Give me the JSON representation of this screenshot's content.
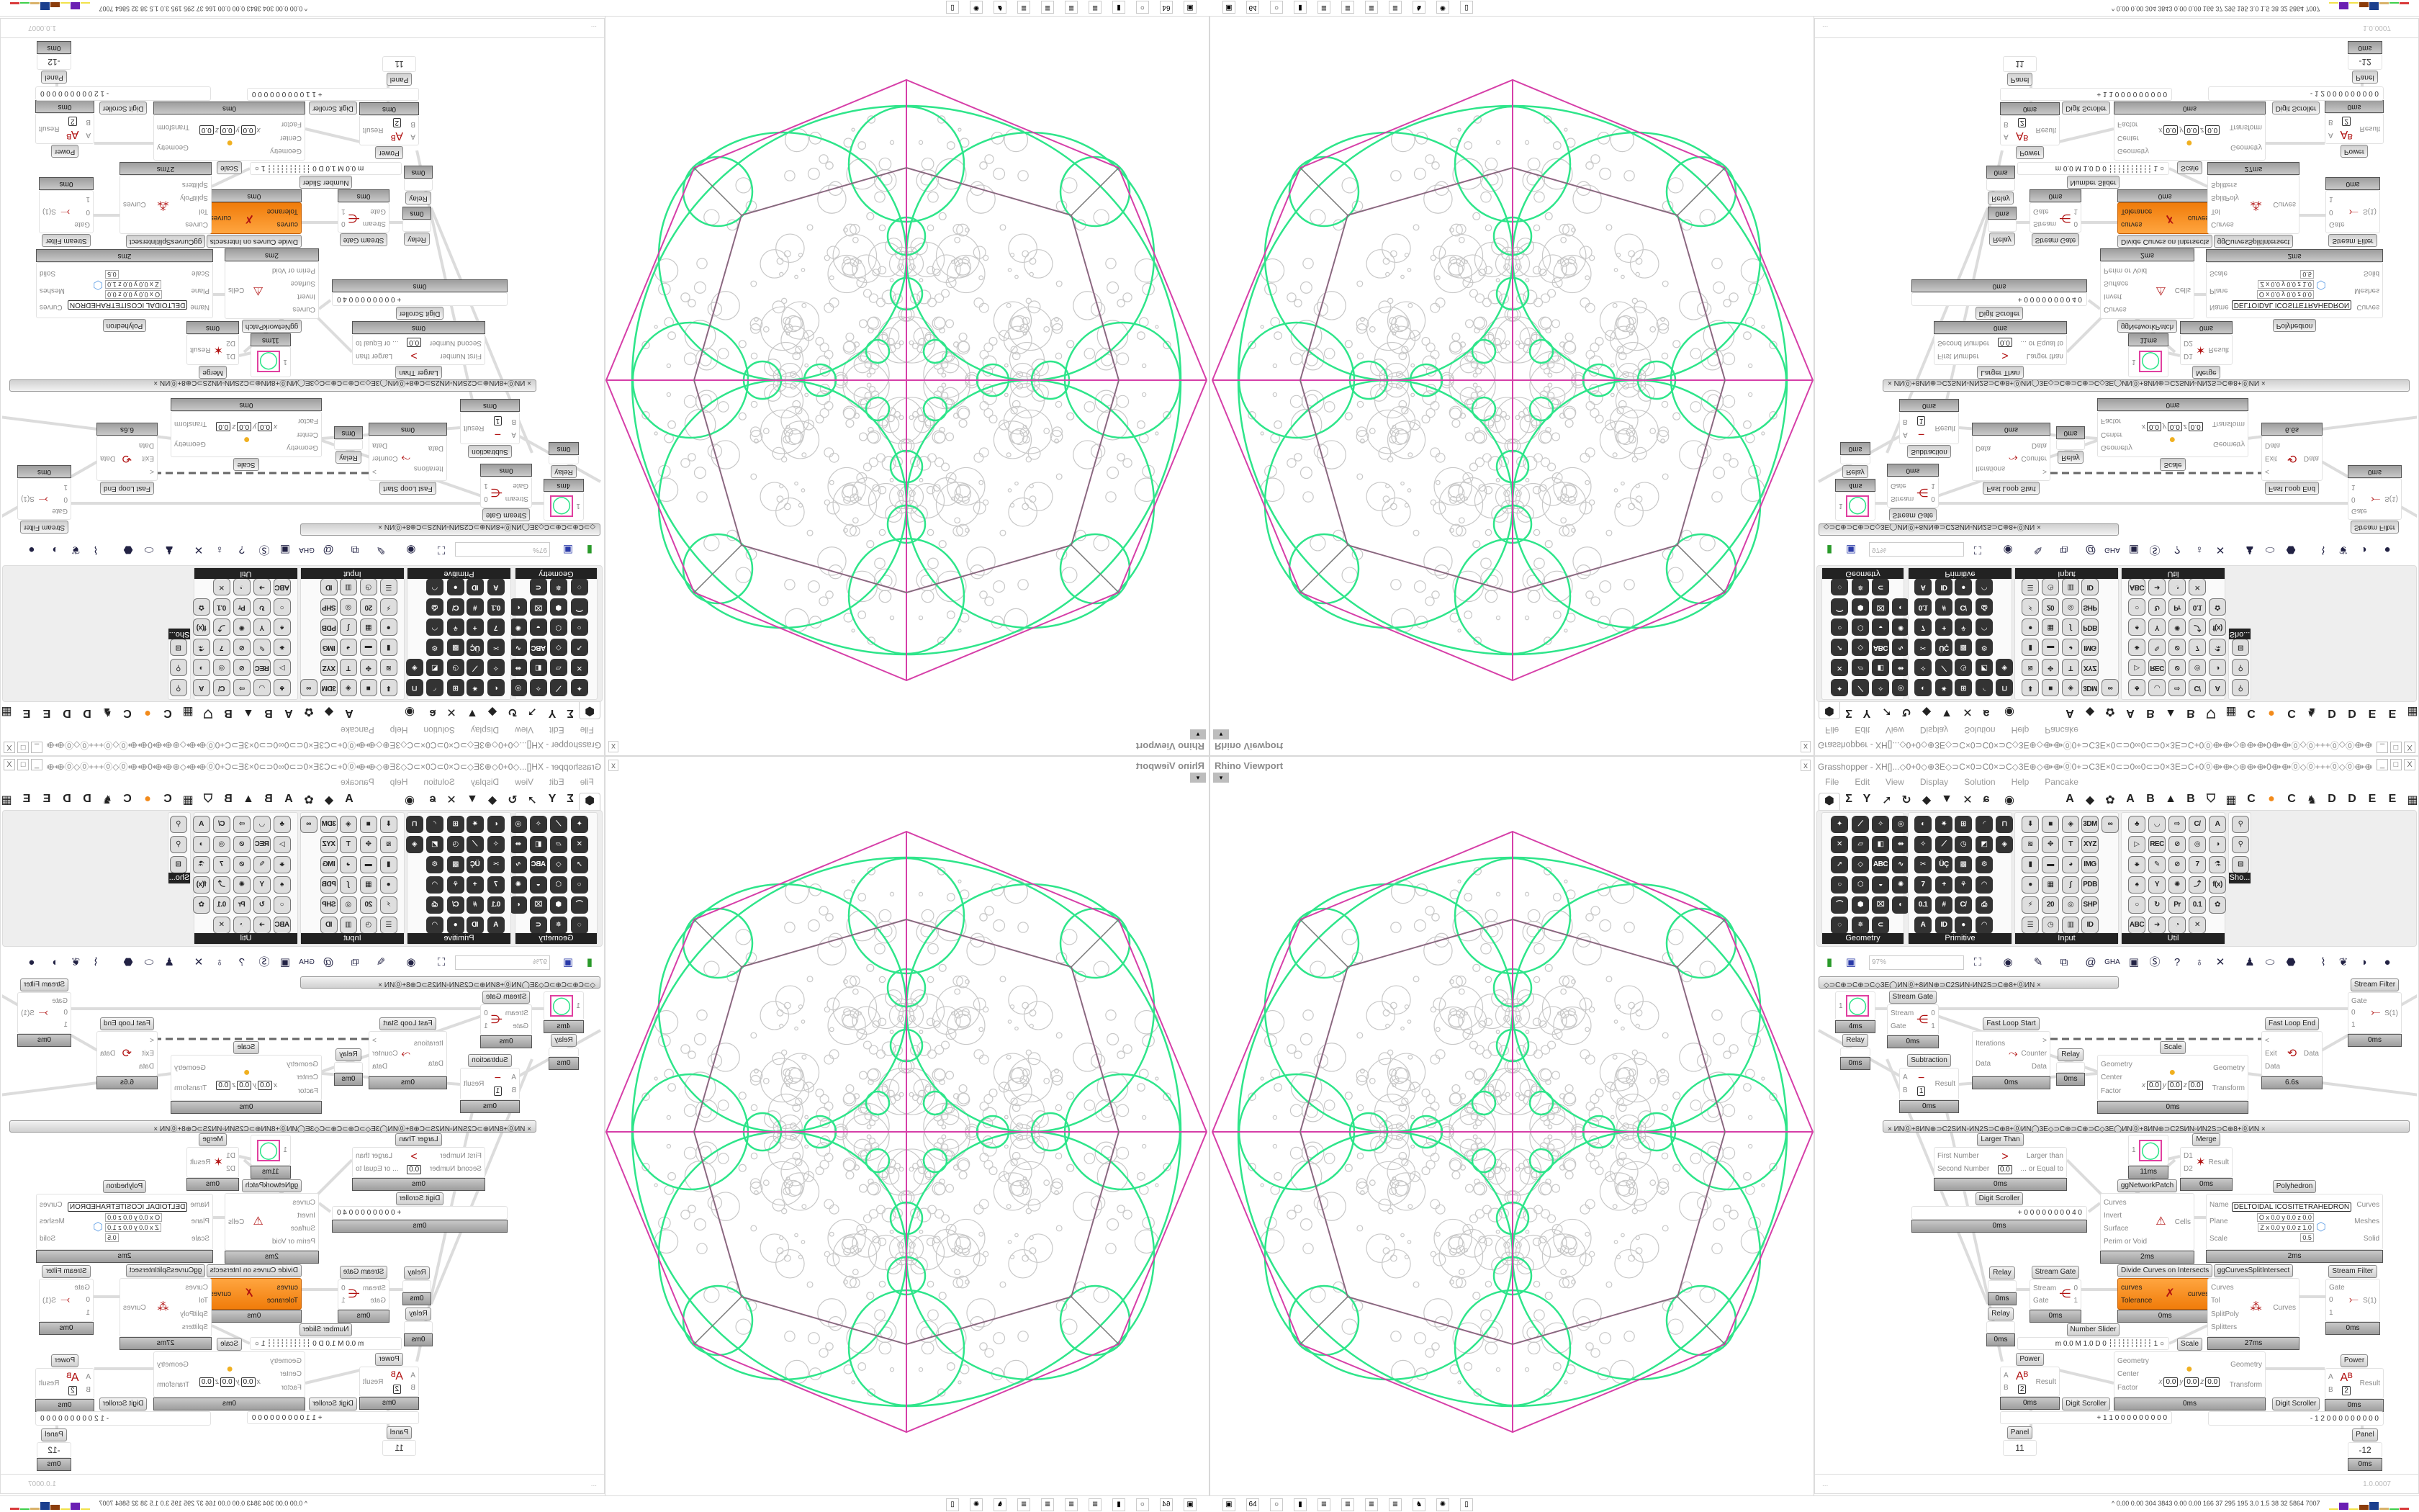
{
  "viewport": {
    "title": "Rhino Viewport",
    "close": "x",
    "dropdown": "▾",
    "colors": {
      "polyhedron": "#d63fa8",
      "curves": "#2ee58a",
      "pattern": "#c8c8c8",
      "edges": "#777777"
    }
  },
  "grasshopper": {
    "title": "Grasshopper - XH[]...◇0+0◇⊕3E◇⊃C×0⊃C0×⊃C◇3E⊕◇⟴⟴⓪0+⊃C3E×0⊂⊃0∞0⊂⊃0×3E⊃C+0⓪⟴⟴◇⊕⟴⟴0⟴⟴⓪◇⓪+++⓪◇⓪⟴⟴0⟴⟴⊕◇⟴⟴⓪0+⊃C3E×0⊂⊃0∞0⊂⊃...",
    "window_buttons": [
      "_",
      "□",
      "X"
    ],
    "menu": [
      "File",
      "Edit",
      "View",
      "Display",
      "Solution",
      "Help",
      "Pancake"
    ],
    "tabs_left": [
      "⬢",
      "Σ",
      "Y",
      "➚",
      "↻",
      "◆",
      "▼",
      "✕",
      "ɕ",
      "◉"
    ],
    "tabs_right": [
      "A",
      "◆",
      "✿",
      "A",
      "B",
      "▲",
      "B",
      "⛉",
      "▦",
      "C",
      "●",
      "C",
      "♞",
      "D",
      "D",
      "E",
      "E",
      "▦"
    ],
    "accent_orange": "#f28a1a",
    "panels": [
      {
        "label": "Geometry",
        "rows": [
          [
            "✦",
            "⟋",
            "✧",
            "◎"
          ],
          [
            "✕",
            "▱",
            "◧",
            "⇹"
          ],
          [
            "➚",
            "◇",
            "ABC",
            "∿"
          ],
          [
            "○",
            "⬡",
            "◒",
            "✺"
          ],
          [
            "⌒",
            "⬢",
            "⌧",
            "◐"
          ],
          [
            "◌",
            "✵",
            "⊂"
          ]
        ]
      },
      {
        "label": "Primitive",
        "rows": [
          [
            "◐",
            "✷",
            "⊞",
            "◜",
            "⊓"
          ],
          [
            "✧",
            "⟋",
            "◷",
            "◩",
            "◈"
          ],
          [
            "✂",
            "ÜÇ",
            "▩",
            "⚙"
          ],
          [
            "7",
            "+",
            "⚘",
            "◠"
          ],
          [
            "0.1",
            "#",
            "C/",
            "⎙"
          ],
          [
            "A",
            "ID",
            "●",
            "◠"
          ]
        ]
      },
      {
        "label": "Input",
        "rows": [
          [
            "⬇",
            "■",
            "◈",
            "3DM",
            "∞"
          ],
          [
            "≋",
            "✥",
            "T",
            "XYZ"
          ],
          [
            "▮",
            "▬",
            "◕",
            "IMG"
          ],
          [
            "●",
            "▦",
            "∫",
            "PDB"
          ],
          [
            "⚡",
            "20",
            "◎",
            "SHP"
          ],
          [
            "☰",
            "◷",
            "▥",
            "ID"
          ]
        ]
      },
      {
        "label": "Util",
        "rows": [
          [
            "♣",
            "◡",
            "⇨",
            "C/",
            "A"
          ],
          [
            "▷",
            "REC",
            "⊘",
            "◎",
            "◑"
          ],
          [
            "⚹",
            "✎",
            "⊘",
            "7",
            "⚗"
          ],
          [
            "♠",
            "Y",
            "✺",
            "⤴",
            "f(x)"
          ],
          [
            "○",
            "↻",
            "Pr",
            "0.1",
            "✿"
          ],
          [
            "ABC",
            "➜",
            "◔",
            "✕"
          ]
        ]
      },
      {
        "label": "Sho...",
        "rows": [
          [
            "⚲"
          ],
          [
            "⚲"
          ],
          [
            "⊟"
          ]
        ]
      }
    ],
    "toolbar": {
      "zoom": "97%",
      "icons": [
        "⛶",
        "◉",
        "✎",
        "⧉",
        "@",
        "GHA",
        "▣",
        "Ⓢ",
        "?",
        "♁",
        "✕",
        "♟",
        "⬭",
        "⬣",
        "⌇",
        "❦",
        "◑",
        "●"
      ]
    },
    "canvas": {
      "groups": [
        {
          "text": "◇⊃C⊕⊃C⊕⊃C◇3E◯ИN⓪+8ИN⊕⊃C2SИN◦ИN2S⊃C⊕8+⓪ИN        ×"
        },
        {
          "text": "×      ИN⓪+8ИN⊕⊃C2SИN◦ИN2S⊃C⊕8+⓪ИN◯3E◇⊃C⊕⊃C⊕⊃C◇3E◯ИN⓪+8ИN⊕⊃C2SИN◦ИN2S⊃C⊕8+⓪ИN      ×"
        }
      ],
      "components": [
        {
          "label": "Stream Filter",
          "inputs": [
            "Gate",
            "0",
            "1"
          ],
          "outputs": [
            "S(1)"
          ],
          "icon": "⤚",
          "footer": "0ms"
        },
        {
          "label": "",
          "inputs": [
            "1"
          ],
          "outputs": [],
          "icon": "◯",
          "footer": "4ms"
        },
        {
          "label": "Stream Gate",
          "inputs": [
            "Stream",
            "Gate"
          ],
          "outputs": [
            "0",
            "1"
          ],
          "icon": "⋲",
          "footer": "0ms"
        },
        {
          "label": "Relay",
          "inputs": [],
          "outputs": [],
          "icon": "",
          "footer": "0ms"
        },
        {
          "label": "Fast Loop Start",
          "inputs": [
            "Iterations",
            "Data"
          ],
          "outputs": [
            ">",
            "Counter",
            "Data"
          ],
          "icon": "⤳",
          "footer": "0ms"
        },
        {
          "label": "Relay",
          "inputs": [],
          "outputs": [],
          "icon": "",
          "footer": "0ms"
        },
        {
          "label": "Subtraction",
          "inputs": [
            "A",
            "B"
          ],
          "outputs": [
            "Result"
          ],
          "icon": "−",
          "params": [
            "1"
          ],
          "footer": "0ms"
        },
        {
          "label": "Scale",
          "inputs": [
            "Geometry",
            "Center",
            "Factor"
          ],
          "outputs": [
            "Geometry",
            "Transform"
          ],
          "icon": "●",
          "params": [
            "x",
            "0.0",
            "y",
            "0.0",
            "z",
            "0.0"
          ],
          "footer": "0ms"
        },
        {
          "label": "Fast Loop End",
          "inputs": [
            "<",
            "Exit",
            "Data"
          ],
          "outputs": [
            "Data"
          ],
          "icon": "⟲",
          "footer": "6.6s"
        },
        {
          "label": "Larger Than",
          "inputs": [
            "First Number",
            "Second Number"
          ],
          "outputs": [
            "Larger than",
            "... or Equal to"
          ],
          "icon": ">",
          "params": [
            "0.0"
          ],
          "footer": "0ms"
        },
        {
          "label": "",
          "inputs": [
            "1"
          ],
          "outputs": [],
          "icon": "◯",
          "footer": "11ms"
        },
        {
          "label": "Merge",
          "inputs": [
            "D1",
            "D2"
          ],
          "outputs": [
            "Result"
          ],
          "icon": "✶",
          "footer": "0ms"
        },
        {
          "label": "Digit Scroller",
          "type": "slider",
          "value": "+ 0 0 0 0 0 0 0 0 4 0",
          "footer": "0ms"
        },
        {
          "label": "ggNetworkPatch",
          "inputs": [
            "Curves",
            "Invert",
            "Surface",
            "Perim or Void"
          ],
          "outputs": [
            "Cells"
          ],
          "icon": "⚠",
          "footer": "2ms"
        },
        {
          "label": "Polyhedron",
          "inputs": [
            "Name",
            "Plane",
            "Scale"
          ],
          "outputs": [
            "Curves",
            "Meshes",
            "Solid"
          ],
          "icon": "⬡",
          "params": [
            "DELTOIDAL ICOSITETRAHEDRON"
          ],
          "extra": [
            "O x 0.0 y 0.0 z 0.0",
            "Z x 0.0 y 0.0 z 1.0",
            "0.5"
          ],
          "footer": "2ms"
        },
        {
          "label": "Relay",
          "inputs": [],
          "outputs": [],
          "icon": "",
          "footer": "0ms"
        },
        {
          "label": "Stream Gate",
          "inputs": [
            "Stream",
            "Gate"
          ],
          "outputs": [
            "0",
            "1"
          ],
          "icon": "⋲",
          "footer": "0ms"
        },
        {
          "label": "Divide Curves on Intersects",
          "inputs": [
            "curves",
            "Tolerance"
          ],
          "outputs": [
            "curves"
          ],
          "icon": "✗",
          "orange": true,
          "footer": "0ms"
        },
        {
          "label": "ggCurvesSplitIntersect",
          "inputs": [
            "Curves",
            "Tol",
            "SplitPoly",
            "Splitters"
          ],
          "outputs": [
            "Curves"
          ],
          "icon": "⁂",
          "footer": "27ms"
        },
        {
          "label": "Stream Filter",
          "inputs": [
            "Gate",
            "0",
            "1"
          ],
          "outputs": [
            "S(1)"
          ],
          "icon": "⤚",
          "footer": "0ms"
        },
        {
          "label": "Relay",
          "inputs": [],
          "outputs": [],
          "icon": "",
          "footer": "0ms"
        },
        {
          "label": "Number Slider",
          "type": "slider",
          "value": "m 0.0  M 1.0  D 0   ┆┆┆┆┆┆┆┆┆┆ 1 ○",
          "footer": ""
        },
        {
          "label": "Scale",
          "inputs": [
            "Geometry",
            "Center",
            "Factor"
          ],
          "outputs": [
            "Geometry",
            "Transform"
          ],
          "icon": "●",
          "params": [
            "x",
            "0.0",
            "y",
            "0.0",
            "z",
            "0.0"
          ],
          "footer": "0ms"
        },
        {
          "label": "Power",
          "inputs": [
            "A",
            "B"
          ],
          "outputs": [
            "Result"
          ],
          "icon": "Aᴮ",
          "params": [
            "2"
          ],
          "footer": "0ms"
        },
        {
          "label": "Digit Scroller",
          "type": "slider",
          "value": "+ 1 1  0 0 0 0 0 0 0 0 0",
          "footer": ""
        },
        {
          "label": "Power",
          "inputs": [
            "A",
            "B"
          ],
          "outputs": [
            "Result"
          ],
          "icon": "Aᴮ",
          "params": [
            "2"
          ],
          "footer": "0ms"
        },
        {
          "label": "Digit Scroller",
          "type": "slider",
          "value": "- 1 2  0 0 0 0 0 0 0 0 0",
          "footer": ""
        },
        {
          "label": "Panel",
          "type": "panel",
          "value": "11",
          "footer": ""
        },
        {
          "label": "Panel",
          "type": "panel",
          "value": "-12",
          "footer": "0ms"
        }
      ]
    },
    "status": {
      "left": "...",
      "version": "1.0.0007"
    }
  },
  "taskbar": {
    "icons": [
      "▣",
      "64",
      "○",
      "▮",
      "≣",
      "≣",
      "≣",
      "≣",
      "♞",
      "✺",
      "▯"
    ],
    "stats_prefix": "^",
    "stats": "0.00 0.00 304 3843 0.00 0.00 166  37  295  195  3.0  1.5  38  32  5864 7007",
    "bar_colors": [
      "#f2e24a",
      "#6a1fb3",
      "#f2e24a",
      "#8b3d0c",
      "#1b3f8e",
      "#d9b26a",
      "#3fcf4a",
      "#d93a3a"
    ]
  }
}
